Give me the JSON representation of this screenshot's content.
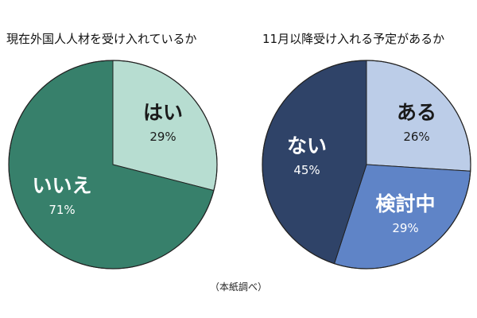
{
  "chart_data": [
    {
      "type": "pie",
      "title": "現在外国人人材を受け入れているか",
      "slices": [
        {
          "label": "はい",
          "value": 29,
          "display": "29%",
          "color": "#b7ddd1",
          "text_color": "#1a1a1a"
        },
        {
          "label": "いいえ",
          "value": 71,
          "display": "71%",
          "color": "#37806b",
          "text_color": "#ffffff"
        }
      ]
    },
    {
      "type": "pie",
      "title": "11月以降受け入れる予定があるか",
      "slices": [
        {
          "label": "ある",
          "value": 26,
          "display": "26%",
          "color": "#bccde8",
          "text_color": "#1a1a1a"
        },
        {
          "label": "検討中",
          "value": 29,
          "display": "29%",
          "color": "#5f84c7",
          "text_color": "#ffffff"
        },
        {
          "label": "ない",
          "value": 45,
          "display": "45%",
          "color": "#2f4368",
          "text_color": "#ffffff"
        }
      ]
    }
  ],
  "source_note": "（本紙調べ）"
}
